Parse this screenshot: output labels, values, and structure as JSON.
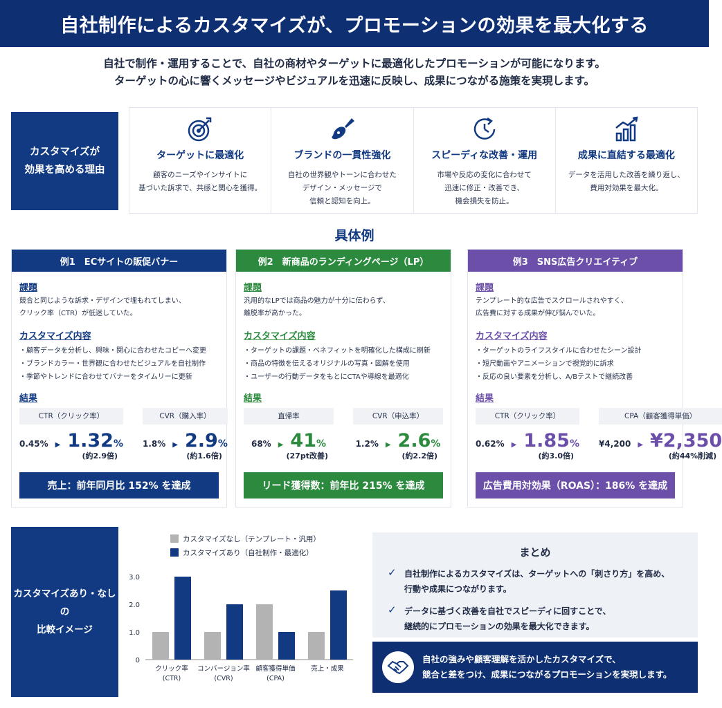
{
  "header": {
    "title": "自社制作によるカスタマイズが、プロモーションの効果を最大化する"
  },
  "intro": {
    "line1": "自社で制作・運用することで、自社の商材やターゲットに最適化したプロモーションが可能になります。",
    "line2": "ターゲットの心に響くメッセージやビジュアルを迅速に反映し、成果につながる施策を実現します。"
  },
  "reasons": {
    "label_line1": "カスタマイズが",
    "label_line2": "効果を高める理由",
    "items": [
      {
        "icon": "target-icon",
        "title": "ターゲットに最適化",
        "lines": [
          "顧客のニーズやインサイトに",
          "基づいた訴求で、共感と関心を獲得。"
        ]
      },
      {
        "icon": "brush-icon",
        "title": "ブランドの一貫性強化",
        "lines": [
          "自社の世界観やトーンに合わせた",
          "デザイン・メッセージで",
          "信頼と認知を向上。"
        ]
      },
      {
        "icon": "cycle-clock-icon",
        "title": "スピーディな改善・運用",
        "lines": [
          "市場や反応の変化に合わせて",
          "迅速に修正・改善でき、",
          "機会損失を防止。"
        ]
      },
      {
        "icon": "growth-chart-icon",
        "title": "成果に直結する最適化",
        "lines": [
          "データを活用した改善を繰り返し、",
          "費用対効果を最大化。"
        ]
      }
    ]
  },
  "examples_title": "具体例",
  "examples": [
    {
      "color": "#123a82",
      "title": "例1　ECサイトの販促バナー",
      "issue_heading": "課題",
      "issue_lines": [
        "競合と同じような訴求・デザインで埋もれてしまい、",
        "クリック率（CTR）が低迷していた。"
      ],
      "custom_heading": "カスタマイズ内容",
      "custom_items": [
        "・顧客データを分析し、興味・関心に合わせたコピーへ変更",
        "・ブランドカラー・世界観に合わせたビジュアルを自社制作",
        "・季節やトレンドに合わせてバナーをタイムリーに更新"
      ],
      "result_heading": "結果",
      "metrics": [
        {
          "label": "CTR（クリック率）",
          "before": "0.45%",
          "after": "1.32",
          "unit": "%",
          "note": "(約2.9倍)"
        },
        {
          "label": "CVR（購入率）",
          "before": "1.8%",
          "after": "2.9",
          "unit": "%",
          "note": "(約1.6倍)"
        }
      ],
      "result_text": "売上：前年同月比 152% を達成"
    },
    {
      "color": "#2b8a3e",
      "title": "例2　新商品のランディングページ（LP）",
      "issue_heading": "課題",
      "issue_lines": [
        "汎用的なLPでは商品の魅力が十分に伝わらず、",
        "離脱率が高かった。"
      ],
      "custom_heading": "カスタマイズ内容",
      "custom_items": [
        "・ターゲットの課題・ベネフィットを明確化した構成に刷新",
        "・商品の特徴を伝えるオリジナルの写真・図解を使用",
        "・ユーザーの行動データをもとにCTAや導線を最適化"
      ],
      "result_heading": "結果",
      "metrics": [
        {
          "label": "直帰率",
          "before": "68%",
          "after": "41",
          "unit": "%",
          "note": "(27pt改善)"
        },
        {
          "label": "CVR（申込率）",
          "before": "1.2%",
          "after": "2.6",
          "unit": "%",
          "note": "(約2.2倍)"
        }
      ],
      "result_text": "リード獲得数：前年比 215% を達成"
    },
    {
      "color": "#6b4fa8",
      "title": "例3　SNS広告クリエイティブ",
      "issue_heading": "課題",
      "issue_lines": [
        "テンプレート的な広告でスクロールされやすく、",
        "広告費に対する成果が伸び悩んでいた。"
      ],
      "custom_heading": "カスタマイズ内容",
      "custom_items": [
        "・ターゲットのライフスタイルに合わせたシーン設計",
        "・短尺動画やアニメーションで視覚的に訴求",
        "・反応の良い要素を分析し、A/Bテストで継続改善"
      ],
      "result_heading": "結果",
      "metrics": [
        {
          "label": "CTR（クリック率）",
          "before": "0.62%",
          "after": "1.85",
          "unit": "%",
          "note": "(約3.0倍)"
        },
        {
          "label": "CPA（顧客獲得単価）",
          "before": "¥4,200",
          "after": "¥2,350",
          "unit": "",
          "note": "(約44%削減)"
        }
      ],
      "result_text": "広告費用対効果（ROAS）：186% を達成"
    }
  ],
  "comparison": {
    "label_line1": "カスタマイズあり・なしの",
    "label_line2": "比較イメージ"
  },
  "chart_data": {
    "type": "bar",
    "categories": [
      "クリック率\n(CTR)",
      "コンバージョン率\n(CVR)",
      "顧客獲得単価\n(CPA)",
      "売上・成果"
    ],
    "series": [
      {
        "name": "カスタマイズなし（テンプレート・汎用）",
        "color": "#b3b3b3",
        "values": [
          1.0,
          1.0,
          2.0,
          1.0
        ]
      },
      {
        "name": "カスタマイズあり（自社制作・最適化）",
        "color": "#123a82",
        "values": [
          3.0,
          2.0,
          1.0,
          2.5
        ]
      }
    ],
    "yticks": [
      "0",
      "1.0",
      "2.0",
      "3.0"
    ],
    "ylim": [
      0,
      3.0
    ],
    "legend": "top"
  },
  "summary": {
    "title": "まとめ",
    "points": [
      [
        "自社制作によるカスタマイズは、ターゲットへの「刺さり方」を高め、",
        "行動や成果につながります。"
      ],
      [
        "データに基づく改善を自社でスピーディに回すことで、",
        "継続的にプロモーションの効果を最大化できます。"
      ]
    ],
    "closing_line1": "自社の強みや顧客理解を活かしたカスタマイズで、",
    "closing_line2": "競合と差をつけ、成果につながるプロモーションを実現します。"
  }
}
